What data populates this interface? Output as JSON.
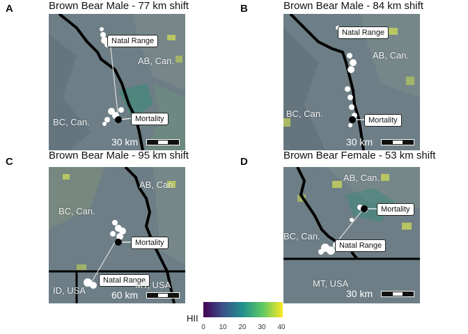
{
  "panels": [
    {
      "letter": "A",
      "title": "Brown Bear Male - 77 km shift",
      "natal_label": "Natal Range",
      "mortality_label": "Mortality",
      "region_1": "AB, Can.",
      "region_2": "BC, Can.",
      "scale_label": "30 km"
    },
    {
      "letter": "B",
      "title": "Brown Bear Male - 84 km shift",
      "natal_label": "Natal Range",
      "mortality_label": "Mortality",
      "region_1": "AB, Can.",
      "region_2": "BC, Can.",
      "scale_label": "30 km"
    },
    {
      "letter": "C",
      "title": "Brown Bear Male - 95 km shift",
      "natal_label": "Natal Range",
      "mortality_label": "Mortality",
      "region_1": "AB, Can.",
      "region_2": "BC, Can.",
      "region_3": "ID, USA",
      "region_4": "MT, USA",
      "scale_label": "60 km"
    },
    {
      "letter": "D",
      "title": "Brown Bear Female - 53 km shift",
      "natal_label": "Natal Range",
      "mortality_label": "Mortality",
      "region_1": "AB, Can.",
      "region_2": "BC, Can.",
      "region_3": "MT, USA",
      "scale_label": "30 km"
    }
  ],
  "legend": {
    "title": "HII",
    "ticks": [
      "0",
      "10",
      "20",
      "30",
      "40"
    ],
    "colors": [
      "#440154",
      "#3b528b",
      "#21918c",
      "#5ec962",
      "#fde725"
    ]
  },
  "colors": {
    "terrain": "#6f7f86",
    "border": "#000000",
    "locations": "#ffffff",
    "mortality_point": "#000000"
  }
}
